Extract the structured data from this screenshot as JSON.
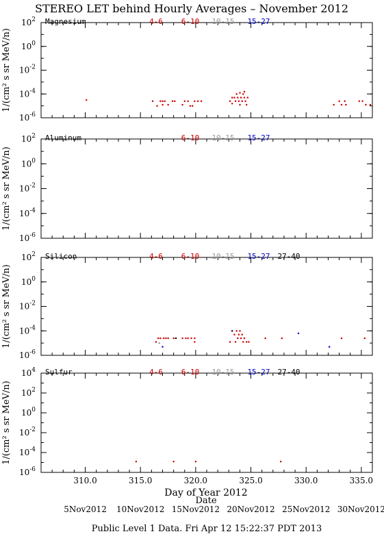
{
  "chart_data": {
    "type": "scatter",
    "title": "STEREO LET behind Hourly Averages – November 2012",
    "xlabel": "Day of Year 2012",
    "xlim": [
      306.0,
      336.0
    ],
    "x_ticks": [
      310.0,
      315.0,
      320.0,
      325.0,
      330.0,
      335.0
    ],
    "x_tick_labels": [
      "310.0",
      "315.0",
      "320.0",
      "325.0",
      "330.0",
      "335.0"
    ],
    "date_axis_label": "Date",
    "date_ticks": [
      {
        "day": 310.0,
        "label": "5Nov2012"
      },
      {
        "day": 315.0,
        "label": "10Nov2012"
      },
      {
        "day": 320.0,
        "label": "15Nov2012"
      },
      {
        "day": 325.0,
        "label": "20Nov2012"
      },
      {
        "day": 330.0,
        "label": "25Nov2012"
      },
      {
        "day": 335.0,
        "label": "30Nov2012"
      }
    ],
    "footer": "Public Level 1 Data. Fri Apr 12 15:22:37 PDT 2013",
    "ylabel": "1/(cm² s sr MeV/n)",
    "y_scale": "log",
    "energy_bin_colors": {
      "4-6": "#cc0000",
      "6-10": "#cc0000",
      "10-15": "#999999",
      "15-27": "#0000cc",
      "27-40": "#000000"
    },
    "panels": [
      {
        "element": "Magnesium",
        "ylim_exp": [
          -6,
          2
        ],
        "y_tick_exps": [
          -6,
          -4,
          -2,
          0,
          2
        ],
        "legend": [
          {
            "label": "4-6",
            "color": "#cc0000"
          },
          {
            "label": "6-10",
            "color": "#cc0000"
          },
          {
            "label": "10-15",
            "color": "#999999"
          },
          {
            "label": "15-27",
            "color": "#0000cc"
          }
        ],
        "points": [
          [
            310.1,
            -4.5,
            "#cc0000"
          ],
          [
            316.1,
            -4.6,
            "#cc0000"
          ],
          [
            316.5,
            -5.0,
            "#cc0000"
          ],
          [
            316.8,
            -4.6,
            "#cc0000"
          ],
          [
            317.0,
            -4.6,
            "#cc0000"
          ],
          [
            317.2,
            -4.6,
            "#cc0000"
          ],
          [
            317.0,
            -4.9,
            "#cc0000"
          ],
          [
            317.5,
            -4.9,
            "#cc0000"
          ],
          [
            317.9,
            -4.6,
            "#cc0000"
          ],
          [
            318.1,
            -4.6,
            "#cc0000"
          ],
          [
            318.8,
            -4.9,
            "#cc0000"
          ],
          [
            319.0,
            -4.6,
            "#cc0000"
          ],
          [
            319.3,
            -4.6,
            "#cc0000"
          ],
          [
            319.5,
            -5.0,
            "#cc0000"
          ],
          [
            319.7,
            -5.0,
            "#cc0000"
          ],
          [
            319.9,
            -4.6,
            "#cc0000"
          ],
          [
            320.2,
            -4.6,
            "#cc0000"
          ],
          [
            320.5,
            -4.6,
            "#cc0000"
          ],
          [
            323.1,
            -4.6,
            "#cc0000"
          ],
          [
            323.3,
            -4.3,
            "#cc0000"
          ],
          [
            323.3,
            -4.8,
            "#cc0000"
          ],
          [
            323.5,
            -4.3,
            "#cc0000"
          ],
          [
            323.6,
            -4.6,
            "#cc0000"
          ],
          [
            323.7,
            -4.0,
            "#cc0000"
          ],
          [
            323.8,
            -4.3,
            "#cc0000"
          ],
          [
            323.9,
            -4.6,
            "#cc0000"
          ],
          [
            324.0,
            -4.9,
            "#cc0000"
          ],
          [
            324.0,
            -3.9,
            "#cc0000"
          ],
          [
            324.1,
            -4.3,
            "#cc0000"
          ],
          [
            324.2,
            -4.6,
            "#cc0000"
          ],
          [
            324.3,
            -4.0,
            "#cc0000"
          ],
          [
            324.4,
            -3.8,
            "#cc0000"
          ],
          [
            324.4,
            -4.3,
            "#cc0000"
          ],
          [
            324.5,
            -4.6,
            "#cc0000"
          ],
          [
            324.6,
            -4.9,
            "#cc0000"
          ],
          [
            324.7,
            -4.3,
            "#cc0000"
          ],
          [
            332.5,
            -4.9,
            "#cc0000"
          ],
          [
            333.0,
            -4.6,
            "#cc0000"
          ],
          [
            333.2,
            -4.9,
            "#cc0000"
          ],
          [
            333.5,
            -4.6,
            "#cc0000"
          ],
          [
            333.6,
            -4.9,
            "#cc0000"
          ],
          [
            334.8,
            -4.6,
            "#cc0000"
          ],
          [
            335.1,
            -4.6,
            "#cc0000"
          ],
          [
            335.4,
            -4.9,
            "#cc0000"
          ],
          [
            335.8,
            -4.9,
            "#cc0000"
          ]
        ]
      },
      {
        "element": "Aluminum",
        "ylim_exp": [
          -6,
          2
        ],
        "y_tick_exps": [
          -6,
          -4,
          -2,
          0,
          2
        ],
        "legend": [
          {
            "label": "6-10",
            "color": "#cc0000"
          },
          {
            "label": "10-15",
            "color": "#999999"
          },
          {
            "label": "15-27",
            "color": "#0000cc"
          }
        ],
        "points": []
      },
      {
        "element": "Silicon",
        "ylim_exp": [
          -6,
          2
        ],
        "y_tick_exps": [
          -6,
          -4,
          -2,
          0,
          2
        ],
        "legend": [
          {
            "label": "4-6",
            "color": "#cc0000"
          },
          {
            "label": "6-10",
            "color": "#cc0000"
          },
          {
            "label": "10-15",
            "color": "#999999"
          },
          {
            "label": "15-27",
            "color": "#0000cc"
          },
          {
            "label": "27-40",
            "color": "#000000"
          }
        ],
        "points": [
          [
            316.4,
            -4.9,
            "#cc0000"
          ],
          [
            316.6,
            -4.6,
            "#cc0000"
          ],
          [
            316.7,
            -5.0,
            "#999999"
          ],
          [
            316.8,
            -4.6,
            "#cc0000"
          ],
          [
            317.0,
            -5.3,
            "#0000cc"
          ],
          [
            317.1,
            -4.6,
            "#cc0000"
          ],
          [
            317.3,
            -4.6,
            "#cc0000"
          ],
          [
            317.5,
            -4.6,
            "#cc0000"
          ],
          [
            318.0,
            -4.6,
            "#cc0000"
          ],
          [
            318.2,
            -4.6,
            "#000000"
          ],
          [
            318.8,
            -4.6,
            "#cc0000"
          ],
          [
            319.1,
            -4.6,
            "#cc0000"
          ],
          [
            319.3,
            -4.6,
            "#cc0000"
          ],
          [
            319.6,
            -4.6,
            "#cc0000"
          ],
          [
            319.9,
            -4.6,
            "#cc0000"
          ],
          [
            319.9,
            -4.9,
            "#cc0000"
          ],
          [
            323.1,
            -4.9,
            "#cc0000"
          ],
          [
            323.3,
            -4.0,
            "#000000"
          ],
          [
            323.5,
            -4.3,
            "#cc0000"
          ],
          [
            323.6,
            -4.9,
            "#cc0000"
          ],
          [
            323.7,
            -4.0,
            "#cc0000"
          ],
          [
            323.8,
            -4.6,
            "#cc0000"
          ],
          [
            323.9,
            -4.3,
            "#cc0000"
          ],
          [
            324.0,
            -4.0,
            "#cc0000"
          ],
          [
            324.1,
            -4.6,
            "#cc0000"
          ],
          [
            324.2,
            -4.3,
            "#cc0000"
          ],
          [
            324.3,
            -4.9,
            "#cc0000"
          ],
          [
            324.4,
            -4.6,
            "#cc0000"
          ],
          [
            324.6,
            -4.9,
            "#cc0000"
          ],
          [
            324.8,
            -4.9,
            "#cc0000"
          ],
          [
            326.3,
            -4.6,
            "#cc0000"
          ],
          [
            327.8,
            -4.6,
            "#cc0000"
          ],
          [
            329.3,
            -4.2,
            "#0000cc"
          ],
          [
            332.1,
            -5.3,
            "#0000cc"
          ],
          [
            333.2,
            -4.6,
            "#cc0000"
          ],
          [
            335.3,
            -4.6,
            "#cc0000"
          ]
        ]
      },
      {
        "element": "Sulfur",
        "ylim_exp": [
          -6,
          4
        ],
        "y_tick_exps": [
          -6,
          -4,
          -2,
          0,
          2,
          4
        ],
        "legend": [
          {
            "label": "4-6",
            "color": "#cc0000"
          },
          {
            "label": "6-10",
            "color": "#cc0000"
          },
          {
            "label": "10-15",
            "color": "#999999"
          },
          {
            "label": "15-27",
            "color": "#0000cc"
          },
          {
            "label": "27-40",
            "color": "#000000"
          }
        ],
        "points": [
          [
            314.6,
            -4.9,
            "#cc0000"
          ],
          [
            318.0,
            -4.9,
            "#cc0000"
          ],
          [
            320.0,
            -4.9,
            "#cc0000"
          ],
          [
            327.7,
            -4.9,
            "#cc0000"
          ]
        ]
      }
    ]
  }
}
